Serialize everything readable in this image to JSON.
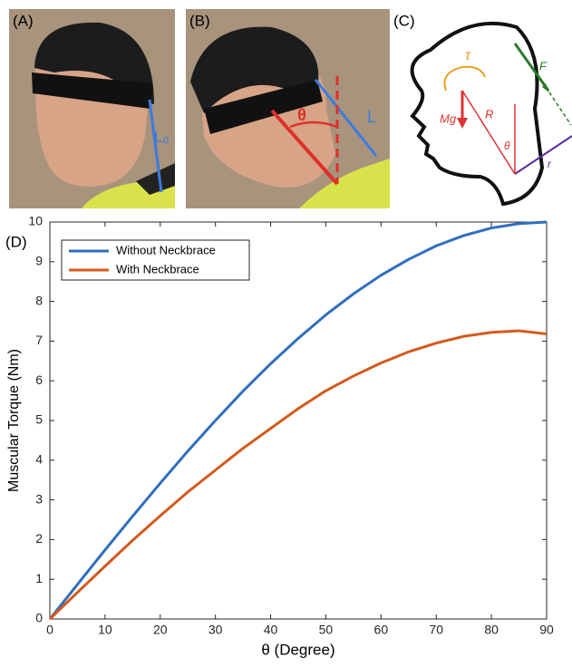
{
  "panels": {
    "a": {
      "label": "(A)",
      "length_label": "L₀"
    },
    "b": {
      "label": "(B)",
      "angle_label": "θ",
      "length_label": "L"
    },
    "c": {
      "label": "(C)",
      "torque_label": "τ",
      "force_label": "F",
      "weight_label": "Mg",
      "radius_label": "R",
      "angle_label": "θ",
      "arm_label": "r"
    },
    "d": {
      "label": "(D)"
    }
  },
  "chart_data": {
    "type": "line",
    "x_label": "θ (Degree)",
    "y_label": "Muscular Torque (Nm)",
    "x": [
      0,
      5,
      10,
      15,
      20,
      25,
      30,
      35,
      40,
      45,
      50,
      55,
      60,
      65,
      70,
      75,
      80,
      85,
      90
    ],
    "series": [
      {
        "name": "Without Neckbrace",
        "color": "#2f6fbd",
        "values": [
          0,
          0.87,
          1.74,
          2.59,
          3.42,
          4.23,
          5.0,
          5.74,
          6.43,
          7.07,
          7.66,
          8.19,
          8.66,
          9.06,
          9.4,
          9.66,
          9.85,
          9.96,
          10.0
        ]
      },
      {
        "name": "With Neckbrace",
        "color": "#d35a1c",
        "values": [
          0,
          0.67,
          1.33,
          1.98,
          2.6,
          3.2,
          3.75,
          4.3,
          4.8,
          5.3,
          5.75,
          6.12,
          6.45,
          6.73,
          6.95,
          7.12,
          7.22,
          7.26,
          7.18
        ]
      }
    ],
    "xlim": [
      0,
      90
    ],
    "xticks": [
      0,
      10,
      20,
      30,
      40,
      50,
      60,
      70,
      80,
      90
    ],
    "ylim": [
      0,
      10
    ],
    "yticks": [
      0,
      1,
      2,
      3,
      4,
      5,
      6,
      7,
      8,
      9,
      10
    ],
    "legend": "upper left"
  }
}
